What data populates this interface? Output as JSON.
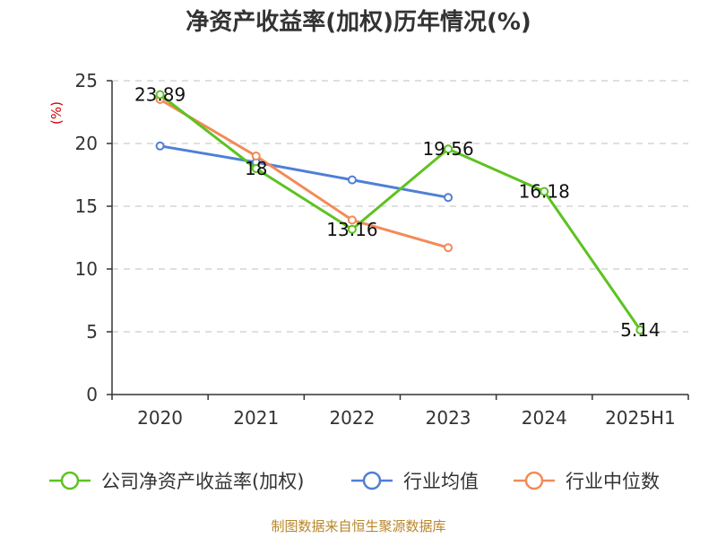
{
  "chart_data": {
    "type": "line",
    "title": "净资产收益率(加权)历年情况(%)",
    "ylabel": "(%)",
    "categories": [
      "2020",
      "2021",
      "2022",
      "2023",
      "2024",
      "2025H1"
    ],
    "ylim": [
      0,
      25
    ],
    "yticks": [
      0,
      5,
      10,
      15,
      20,
      25
    ],
    "grid": true,
    "legend_position": "bottom",
    "series": [
      {
        "name": "公司净资产收益率(加权)",
        "color": "#5cc320",
        "values": [
          23.89,
          18,
          13.16,
          19.56,
          16.18,
          5.14
        ],
        "labels": [
          "23.89",
          "18",
          "13.16",
          "19.56",
          "16.18",
          "5.14"
        ]
      },
      {
        "name": "行业均值",
        "color": "#4f7fd6",
        "values": [
          19.8,
          18.5,
          17.1,
          15.7,
          null,
          null
        ]
      },
      {
        "name": "行业中位数",
        "color": "#f38a58",
        "values": [
          23.5,
          19.0,
          13.9,
          11.7,
          null,
          null
        ]
      }
    ]
  },
  "footer": {
    "source": "制图数据来自恒生聚源数据库"
  }
}
